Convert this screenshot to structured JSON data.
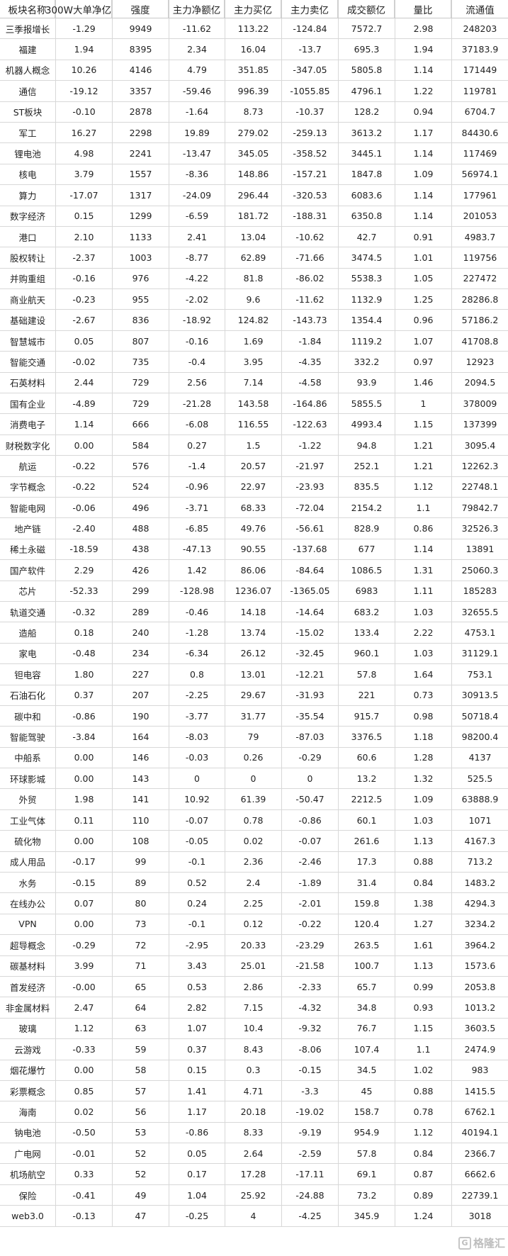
{
  "table": {
    "headers": [
      "板块名称",
      "300W大单净亿",
      "强度",
      "主力净额亿",
      "主力买亿",
      "主力卖亿",
      "成交额亿",
      "量比",
      "流通值"
    ],
    "rows": [
      [
        "三季报增长",
        "-1.29",
        "9949",
        "-11.62",
        "113.22",
        "-124.84",
        "7572.7",
        "2.98",
        "248203"
      ],
      [
        "福建",
        "1.94",
        "8395",
        "2.34",
        "16.04",
        "-13.7",
        "695.3",
        "1.94",
        "37183.9"
      ],
      [
        "机器人概念",
        "10.26",
        "4146",
        "4.79",
        "351.85",
        "-347.05",
        "5805.8",
        "1.14",
        "171449"
      ],
      [
        "通信",
        "-19.12",
        "3357",
        "-59.46",
        "996.39",
        "-1055.85",
        "4796.1",
        "1.22",
        "119781"
      ],
      [
        "ST板块",
        "-0.10",
        "2878",
        "-1.64",
        "8.73",
        "-10.37",
        "128.2",
        "0.94",
        "6704.7"
      ],
      [
        "军工",
        "16.27",
        "2298",
        "19.89",
        "279.02",
        "-259.13",
        "3613.2",
        "1.17",
        "84430.6"
      ],
      [
        "锂电池",
        "4.98",
        "2241",
        "-13.47",
        "345.05",
        "-358.52",
        "3445.1",
        "1.14",
        "117469"
      ],
      [
        "核电",
        "3.79",
        "1557",
        "-8.36",
        "148.86",
        "-157.21",
        "1847.8",
        "1.09",
        "56974.1"
      ],
      [
        "算力",
        "-17.07",
        "1317",
        "-24.09",
        "296.44",
        "-320.53",
        "6083.6",
        "1.14",
        "177961"
      ],
      [
        "数字经济",
        "0.15",
        "1299",
        "-6.59",
        "181.72",
        "-188.31",
        "6350.8",
        "1.14",
        "201053"
      ],
      [
        "港口",
        "2.10",
        "1133",
        "2.41",
        "13.04",
        "-10.62",
        "42.7",
        "0.91",
        "4983.7"
      ],
      [
        "股权转让",
        "-2.37",
        "1003",
        "-8.77",
        "62.89",
        "-71.66",
        "3474.5",
        "1.01",
        "119756"
      ],
      [
        "并购重组",
        "-0.16",
        "976",
        "-4.22",
        "81.8",
        "-86.02",
        "5538.3",
        "1.05",
        "227472"
      ],
      [
        "商业航天",
        "-0.23",
        "955",
        "-2.02",
        "9.6",
        "-11.62",
        "1132.9",
        "1.25",
        "28286.8"
      ],
      [
        "基础建设",
        "-2.67",
        "836",
        "-18.92",
        "124.82",
        "-143.73",
        "1354.4",
        "0.96",
        "57186.2"
      ],
      [
        "智慧城市",
        "0.05",
        "807",
        "-0.16",
        "1.69",
        "-1.84",
        "1119.2",
        "1.07",
        "41708.8"
      ],
      [
        "智能交通",
        "-0.02",
        "735",
        "-0.4",
        "3.95",
        "-4.35",
        "332.2",
        "0.97",
        "12923"
      ],
      [
        "石英材料",
        "2.44",
        "729",
        "2.56",
        "7.14",
        "-4.58",
        "93.9",
        "1.46",
        "2094.5"
      ],
      [
        "国有企业",
        "-4.89",
        "729",
        "-21.28",
        "143.58",
        "-164.86",
        "5855.5",
        "1",
        "378009"
      ],
      [
        "消费电子",
        "1.14",
        "666",
        "-6.08",
        "116.55",
        "-122.63",
        "4993.4",
        "1.15",
        "137399"
      ],
      [
        "财税数字化",
        "0.00",
        "584",
        "0.27",
        "1.5",
        "-1.22",
        "94.8",
        "1.21",
        "3095.4"
      ],
      [
        "航运",
        "-0.22",
        "576",
        "-1.4",
        "20.57",
        "-21.97",
        "252.1",
        "1.21",
        "12262.3"
      ],
      [
        "字节概念",
        "-0.22",
        "524",
        "-0.96",
        "22.97",
        "-23.93",
        "835.5",
        "1.12",
        "22748.1"
      ],
      [
        "智能电网",
        "-0.06",
        "496",
        "-3.71",
        "68.33",
        "-72.04",
        "2154.2",
        "1.1",
        "79842.7"
      ],
      [
        "地产链",
        "-2.40",
        "488",
        "-6.85",
        "49.76",
        "-56.61",
        "828.9",
        "0.86",
        "32526.3"
      ],
      [
        "稀土永磁",
        "-18.59",
        "438",
        "-47.13",
        "90.55",
        "-137.68",
        "677",
        "1.14",
        "13891"
      ],
      [
        "国产软件",
        "2.29",
        "426",
        "1.42",
        "86.06",
        "-84.64",
        "1086.5",
        "1.31",
        "25060.3"
      ],
      [
        "芯片",
        "-52.33",
        "299",
        "-128.98",
        "1236.07",
        "-1365.05",
        "6983",
        "1.11",
        "185283"
      ],
      [
        "轨道交通",
        "-0.32",
        "289",
        "-0.46",
        "14.18",
        "-14.64",
        "683.2",
        "1.03",
        "32655.5"
      ],
      [
        "造船",
        "0.18",
        "240",
        "-1.28",
        "13.74",
        "-15.02",
        "133.4",
        "2.22",
        "4753.1"
      ],
      [
        "家电",
        "-0.48",
        "234",
        "-6.34",
        "26.12",
        "-32.45",
        "960.1",
        "1.03",
        "31129.1"
      ],
      [
        "钽电容",
        "1.80",
        "227",
        "0.8",
        "13.01",
        "-12.21",
        "57.8",
        "1.64",
        "753.1"
      ],
      [
        "石油石化",
        "0.37",
        "207",
        "-2.25",
        "29.67",
        "-31.93",
        "221",
        "0.73",
        "30913.5"
      ],
      [
        "碳中和",
        "-0.86",
        "190",
        "-3.77",
        "31.77",
        "-35.54",
        "915.7",
        "0.98",
        "50718.4"
      ],
      [
        "智能驾驶",
        "-3.84",
        "164",
        "-8.03",
        "79",
        "-87.03",
        "3376.5",
        "1.18",
        "98200.4"
      ],
      [
        "中船系",
        "0.00",
        "146",
        "-0.03",
        "0.26",
        "-0.29",
        "60.6",
        "1.28",
        "4137"
      ],
      [
        "环球影城",
        "0.00",
        "143",
        "0",
        "0",
        "0",
        "13.2",
        "1.32",
        "525.5"
      ],
      [
        "外贸",
        "1.98",
        "141",
        "10.92",
        "61.39",
        "-50.47",
        "2212.5",
        "1.09",
        "63888.9"
      ],
      [
        "工业气体",
        "0.11",
        "110",
        "-0.07",
        "0.78",
        "-0.86",
        "60.1",
        "1.03",
        "1071"
      ],
      [
        "硫化物",
        "0.00",
        "108",
        "-0.05",
        "0.02",
        "-0.07",
        "261.6",
        "1.13",
        "4167.3"
      ],
      [
        "成人用品",
        "-0.17",
        "99",
        "-0.1",
        "2.36",
        "-2.46",
        "17.3",
        "0.88",
        "713.2"
      ],
      [
        "水务",
        "-0.15",
        "89",
        "0.52",
        "2.4",
        "-1.89",
        "31.4",
        "0.84",
        "1483.2"
      ],
      [
        "在线办公",
        "0.07",
        "80",
        "0.24",
        "2.25",
        "-2.01",
        "159.8",
        "1.38",
        "4294.3"
      ],
      [
        "VPN",
        "0.00",
        "73",
        "-0.1",
        "0.12",
        "-0.22",
        "120.4",
        "1.27",
        "3234.2"
      ],
      [
        "超导概念",
        "-0.29",
        "72",
        "-2.95",
        "20.33",
        "-23.29",
        "263.5",
        "1.61",
        "3964.2"
      ],
      [
        "碳基材料",
        "3.99",
        "71",
        "3.43",
        "25.01",
        "-21.58",
        "100.7",
        "1.13",
        "1573.6"
      ],
      [
        "首发经济",
        "-0.00",
        "65",
        "0.53",
        "2.86",
        "-2.33",
        "65.7",
        "0.99",
        "2053.8"
      ],
      [
        "非金属材料",
        "2.47",
        "64",
        "2.82",
        "7.15",
        "-4.32",
        "34.8",
        "0.93",
        "1013.2"
      ],
      [
        "玻璃",
        "1.12",
        "63",
        "1.07",
        "10.4",
        "-9.32",
        "76.7",
        "1.15",
        "3603.5"
      ],
      [
        "云游戏",
        "-0.33",
        "59",
        "0.37",
        "8.43",
        "-8.06",
        "107.4",
        "1.1",
        "2474.9"
      ],
      [
        "烟花爆竹",
        "0.00",
        "58",
        "0.15",
        "0.3",
        "-0.15",
        "34.5",
        "1.02",
        "983"
      ],
      [
        "彩票概念",
        "0.85",
        "57",
        "1.41",
        "4.71",
        "-3.3",
        "45",
        "0.88",
        "1415.5"
      ],
      [
        "海南",
        "0.02",
        "56",
        "1.17",
        "20.18",
        "-19.02",
        "158.7",
        "0.78",
        "6762.1"
      ],
      [
        "钠电池",
        "-0.50",
        "53",
        "-0.86",
        "8.33",
        "-9.19",
        "954.9",
        "1.12",
        "40194.1"
      ],
      [
        "广电网",
        "-0.01",
        "52",
        "0.05",
        "2.64",
        "-2.59",
        "57.8",
        "0.84",
        "2366.7"
      ],
      [
        "机场航空",
        "0.33",
        "52",
        "0.17",
        "17.28",
        "-17.11",
        "69.1",
        "0.87",
        "6662.6"
      ],
      [
        "保险",
        "-0.41",
        "49",
        "1.04",
        "25.92",
        "-24.88",
        "73.2",
        "0.89",
        "22739.1"
      ],
      [
        "web3.0",
        "-0.13",
        "47",
        "-0.25",
        "4",
        "-4.25",
        "345.9",
        "1.24",
        "3018"
      ]
    ]
  },
  "watermark": {
    "text": "格隆汇",
    "icon": "gelonghui-logo-icon"
  }
}
